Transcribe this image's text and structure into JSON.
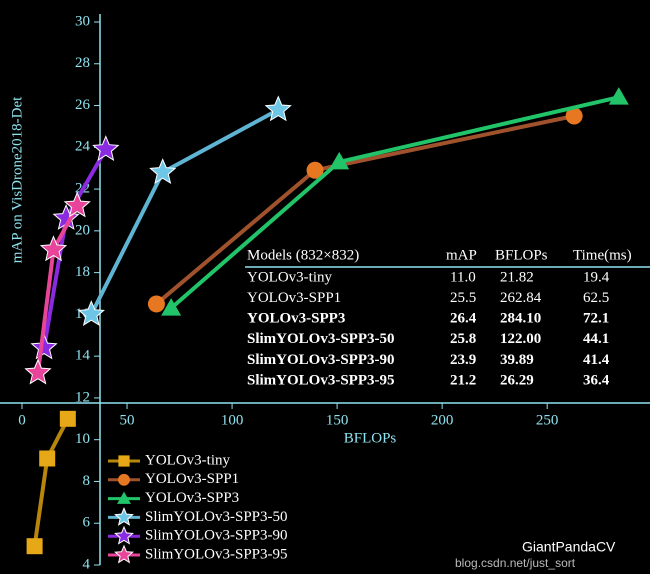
{
  "chart_data": {
    "type": "line",
    "xlabel": "BFLOPs",
    "ylabel": "mAP on VisDrone2018-Det",
    "xlim": [
      0,
      298
    ],
    "ylim": [
      4,
      30
    ],
    "xticks": [
      0,
      50,
      100,
      150,
      200,
      250
    ],
    "yticks": [
      4,
      6,
      8,
      10,
      12,
      14,
      16,
      18,
      20,
      22,
      24,
      26,
      28,
      30
    ],
    "series": [
      {
        "name": "YOLOv3-tiny",
        "color": "#e6a817",
        "line_color": "#b8860b",
        "marker": "square",
        "x": [
          6,
          12,
          21.82
        ],
        "values": [
          4.9,
          9.1,
          11.0
        ]
      },
      {
        "name": "YOLOv3-SPP1",
        "color": "#e87722",
        "line_color": "#a0522d",
        "marker": "circle",
        "x": [
          64,
          139.5,
          262.84
        ],
        "values": [
          16.5,
          22.9,
          25.5
        ]
      },
      {
        "name": "YOLOv3-SPP3",
        "color": "#22c46a",
        "line_color": "#22c46a",
        "marker": "triangle",
        "x": [
          71,
          151,
          284.1
        ],
        "values": [
          16.3,
          23.3,
          26.4
        ]
      },
      {
        "name": "SlimYOLOv3-SPP3-50",
        "color": "#6ec6e6",
        "line_color": "#5fb3d3",
        "marker": "star",
        "x": [
          33,
          67,
          122
        ],
        "values": [
          16.0,
          22.8,
          25.8
        ]
      },
      {
        "name": "SlimYOLOv3-SPP3-90",
        "color": "#8a2be2",
        "line_color": "#8a2be2",
        "marker": "star",
        "x": [
          10.5,
          21,
          39.89
        ],
        "values": [
          14.4,
          20.6,
          23.9
        ]
      },
      {
        "name": "SlimYOLOv3-SPP3-95",
        "color": "#e8459a",
        "line_color": "#e8459a",
        "marker": "star",
        "x": [
          7.6,
          15,
          26.29
        ],
        "values": [
          13.2,
          19.1,
          21.2
        ]
      }
    ],
    "table": {
      "header": [
        "Models (832×832)",
        "mAP",
        "BFLOPs",
        "Time(ms)"
      ],
      "rows": [
        [
          "YOLOv3-tiny",
          "11.0",
          "21.82",
          "19.4"
        ],
        [
          "YOLOv3-SPP1",
          "25.5",
          "262.84",
          "62.5"
        ],
        [
          "YOLOv3-SPP3",
          "26.4",
          "284.10",
          "72.1"
        ],
        [
          "SlimYOLOv3-SPP3-50",
          "25.8",
          "122.00",
          "44.1"
        ],
        [
          "SlimYOLOv3-SPP3-90",
          "23.9",
          "39.89",
          "41.4"
        ],
        [
          "SlimYOLOv3-SPP3-95",
          "21.2",
          "26.29",
          "36.4"
        ]
      ]
    },
    "watermark": [
      "GiantPandaCV",
      "blog.csdn.net/just_sort"
    ]
  }
}
